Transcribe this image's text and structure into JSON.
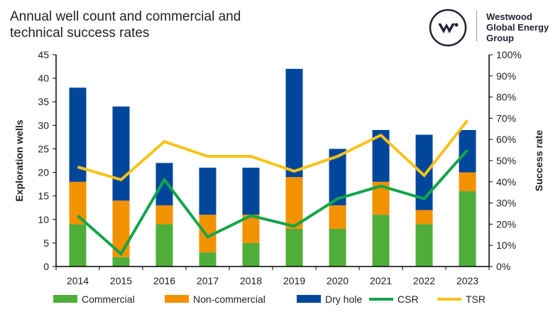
{
  "title": "Annual well count and commercial and technical success rates",
  "brand": {
    "line1": "Westwood",
    "line2": "Global Energy",
    "line3": "Group"
  },
  "chart_data": {
    "type": "bar",
    "stacked": true,
    "categories": [
      "2014",
      "2015",
      "2016",
      "2017",
      "2018",
      "2019",
      "2020",
      "2021",
      "2022",
      "2023"
    ],
    "series": [
      {
        "name": "Commercial",
        "type": "bar",
        "axis": "left",
        "color": "#4fae3a",
        "values": [
          9,
          2,
          9,
          3,
          5,
          8,
          8,
          11,
          9,
          16
        ]
      },
      {
        "name": "Non-commercial",
        "type": "bar",
        "axis": "left",
        "color": "#f39200",
        "values": [
          9,
          12,
          4,
          8,
          6,
          11,
          5,
          7,
          3,
          4
        ]
      },
      {
        "name": "Dry hole",
        "type": "bar",
        "axis": "left",
        "color": "#00479b",
        "values": [
          20,
          20,
          9,
          10,
          10,
          23,
          12,
          11,
          16,
          9
        ]
      },
      {
        "name": "CSR",
        "type": "line",
        "axis": "right",
        "color": "#12a54a",
        "values": [
          24,
          6,
          41,
          14,
          24,
          19,
          32,
          38,
          32,
          55
        ]
      },
      {
        "name": "TSR",
        "type": "line",
        "axis": "right",
        "color": "#f7c31a",
        "values": [
          47,
          41,
          59,
          52,
          52,
          45,
          52,
          62,
          43,
          69
        ]
      }
    ],
    "ylabel": "Exploration wells",
    "ylim": [
      0,
      45
    ],
    "yticks": [
      "0",
      "5",
      "10",
      "15",
      "20",
      "25",
      "30",
      "35",
      "40",
      "45"
    ],
    "y2label": "Success rate",
    "y2lim": [
      0,
      100
    ],
    "y2ticks": [
      "0%",
      "10%",
      "20%",
      "30%",
      "40%",
      "50%",
      "60%",
      "70%",
      "80%",
      "90%",
      "100%"
    ],
    "grid": false,
    "legend": "bottom"
  }
}
